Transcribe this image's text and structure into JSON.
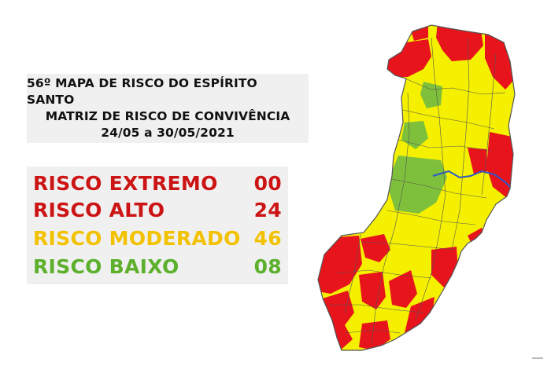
{
  "title": {
    "line1": "56º MAPA DE RISCO DO ESPÍRITO SANTO",
    "line2": "MATRIZ DE RISCO DE CONVIVÊNCIA",
    "line3": "24/05 a 30/05/2021"
  },
  "legend": [
    {
      "label": "RISCO EXTREMO",
      "count": "00",
      "color": "#cc1414"
    },
    {
      "label": "RISCO ALTO",
      "count": "24",
      "color": "#cc1414"
    },
    {
      "label": "RISCO MODERADO",
      "count": "46",
      "color": "#f2c200"
    },
    {
      "label": "RISCO BAIXO",
      "count": "08",
      "color": "#5cb02c"
    }
  ],
  "map": {
    "colors": {
      "alto": "#e8141c",
      "moderado": "#f4f000",
      "baixo": "#7ec03c",
      "border": "#555555",
      "river": "#2a58c8"
    }
  }
}
